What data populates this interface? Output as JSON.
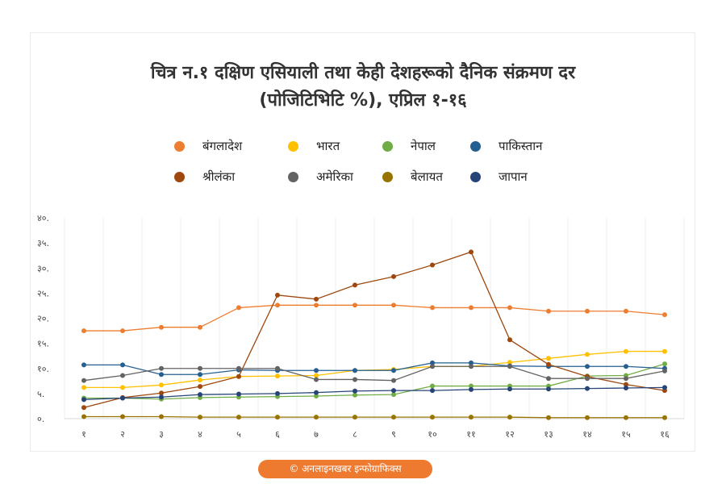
{
  "title_line1": "चित्र न.१ दक्षिण एसियाली तथा केही देशहरूको दैनिक संक्रमण दर",
  "title_line2": "(पोजिटिभिटि %), एप्रिल १-१६",
  "credit": "© अनलाइनखबर इन्फोग्राफिक्स",
  "chart_data": {
    "type": "line",
    "title": "चित्र न.१ दक्षिण एसियाली तथा केही देशहरूको दैनिक संक्रमण दर (पोजिटिभिटि %), एप्रिल १-१६",
    "categories": [
      "१",
      "२",
      "३",
      "४",
      "५",
      "६",
      "७",
      "८",
      "९",
      "१०",
      "११",
      "१२",
      "१३",
      "१४",
      "१५",
      "१६"
    ],
    "y_ticks": [
      "०.",
      "५.",
      "१०.",
      "१५.",
      "२०.",
      "२५.",
      "३०.",
      "३५.",
      "४०."
    ],
    "ylim": [
      0,
      40
    ],
    "grid": true,
    "legend_position": "top",
    "series": [
      {
        "name": "बंगलादेश",
        "color": "#ed7d31",
        "values": [
          17.5,
          17.5,
          18.2,
          18.2,
          22.1,
          22.6,
          22.6,
          22.6,
          22.6,
          22.1,
          22.1,
          22.1,
          21.4,
          21.4,
          21.4,
          20.7
        ]
      },
      {
        "name": "भारत",
        "color": "#ffc000",
        "values": [
          6.2,
          6.2,
          6.7,
          7.7,
          8.4,
          8.5,
          8.6,
          9.6,
          9.8,
          10.4,
          10.4,
          11.2,
          12.0,
          12.8,
          13.4,
          13.4
        ]
      },
      {
        "name": "नेपाल",
        "color": "#70ad47",
        "values": [
          4.1,
          4.1,
          3.9,
          4.2,
          4.3,
          4.4,
          4.5,
          4.7,
          4.8,
          6.5,
          6.5,
          6.5,
          6.5,
          8.5,
          8.6,
          10.9
        ]
      },
      {
        "name": "पाकिस्तान",
        "color": "#255e91",
        "values": [
          10.7,
          10.7,
          8.8,
          8.8,
          9.7,
          9.6,
          9.6,
          9.6,
          9.6,
          11.1,
          11.1,
          10.5,
          10.4,
          10.4,
          10.4,
          10.0
        ]
      },
      {
        "name": "श्रीलंका",
        "color": "#9e480e",
        "values": [
          2.2,
          4.2,
          5.1,
          6.4,
          8.4,
          24.6,
          23.8,
          26.6,
          28.3,
          30.6,
          33.2,
          15.7,
          10.8,
          8.4,
          6.8,
          5.6
        ]
      },
      {
        "name": "अमेरिका",
        "color": "#636363",
        "values": [
          7.6,
          8.6,
          10.0,
          10.0,
          10.0,
          10.0,
          7.8,
          7.8,
          7.6,
          10.4,
          10.4,
          10.4,
          8.0,
          8.0,
          8.0,
          9.5
        ]
      },
      {
        "name": "बेलायत",
        "color": "#997300",
        "values": [
          0.4,
          0.4,
          0.4,
          0.3,
          0.3,
          0.3,
          0.3,
          0.3,
          0.3,
          0.3,
          0.3,
          0.3,
          0.2,
          0.2,
          0.2,
          0.2
        ]
      },
      {
        "name": "जापान",
        "color": "#264478",
        "values": [
          3.8,
          4.1,
          4.3,
          4.8,
          4.9,
          5.0,
          5.2,
          5.5,
          5.6,
          5.6,
          5.8,
          5.9,
          5.9,
          6.0,
          6.1,
          6.2
        ]
      }
    ]
  }
}
